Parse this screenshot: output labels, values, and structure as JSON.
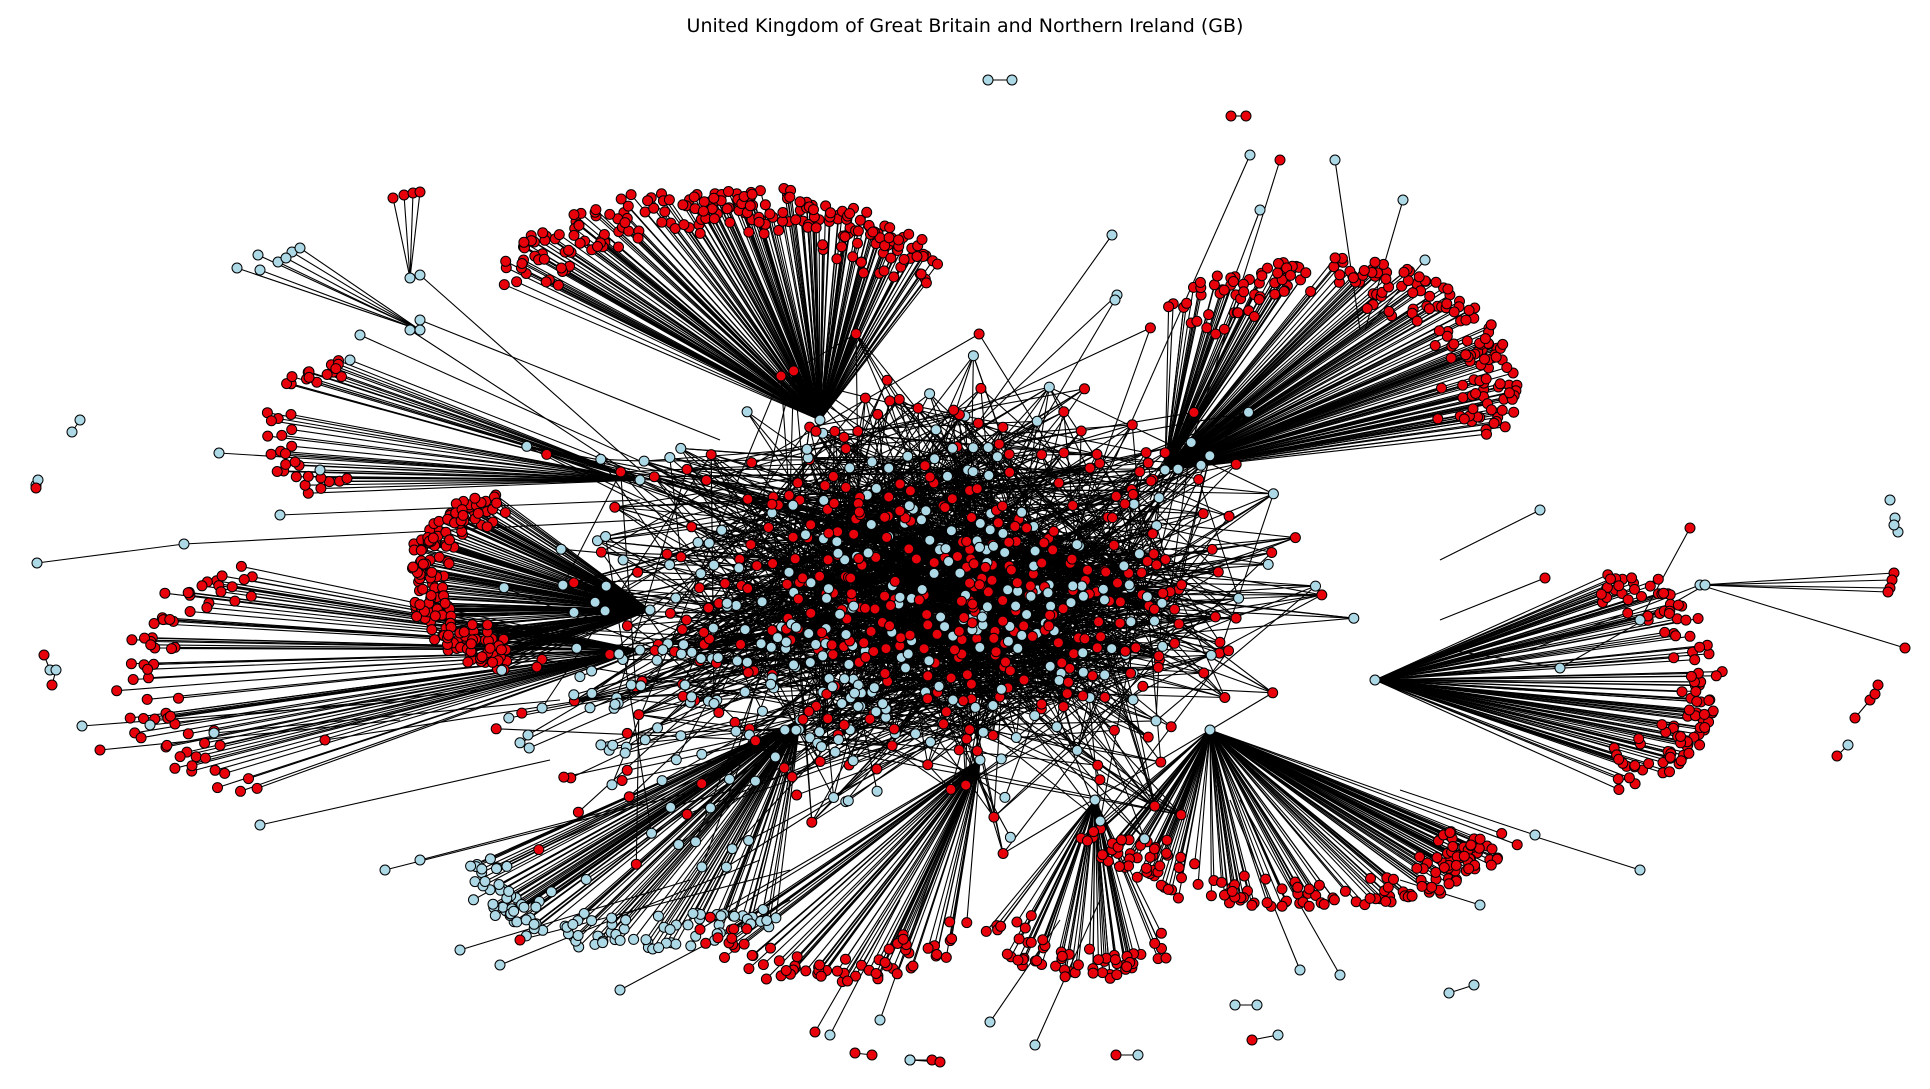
{
  "title": "United Kingdom of Great Britain and Northern Ireland (GB)",
  "legend": [],
  "colors": {
    "node_type_a": "#e8000b",
    "node_type_b": "#add8e6",
    "node_outline": "#000000",
    "edge": "#000000",
    "background": "#ffffff"
  },
  "chart_data": {
    "type": "network",
    "title": "United Kingdom of Great Britain and Northern Ireland (GB)",
    "node_types": [
      {
        "name": "",
        "color": "#e8000b"
      },
      {
        "name": "",
        "color": "#add8e6"
      }
    ],
    "layout": "force-directed",
    "axes": "none",
    "grid": false
  }
}
